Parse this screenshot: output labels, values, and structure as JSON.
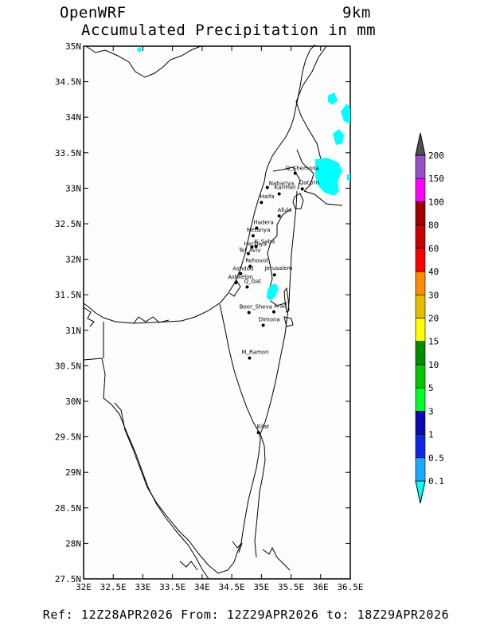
{
  "header": {
    "model": "OpenWRF",
    "resolution": "9km",
    "field": "Accumulated Precipitation in mm"
  },
  "footer": {
    "text": "Ref: 12Z28APR2026  From: 12Z29APR2026  to: 18Z29APR2026"
  },
  "map": {
    "lat_ticks": [
      "35N",
      "34.5N",
      "34N",
      "33.5N",
      "33N",
      "32.5N",
      "32N",
      "31.5N",
      "31N",
      "30.5N",
      "30N",
      "29.5N",
      "29N",
      "28.5N",
      "28N",
      "27.5N"
    ],
    "lon_ticks": [
      "32E",
      "32.5E",
      "33E",
      "33.5E",
      "34E",
      "34.5E",
      "35E",
      "35.5E",
      "36E",
      "36.5E"
    ],
    "lat_range": [
      27.5,
      35
    ],
    "lon_range": [
      32,
      36.5
    ],
    "cities": [
      {
        "name": "Q_Shemona",
        "lon": 35.57,
        "lat": 33.21
      },
      {
        "name": "Nahariya",
        "lon": 35.1,
        "lat": 33.01
      },
      {
        "name": "Karmiel",
        "lon": 35.3,
        "lat": 32.92
      },
      {
        "name": "Qatzrin",
        "lon": 35.69,
        "lat": 32.99
      },
      {
        "name": "Haifa",
        "lon": 35.0,
        "lat": 32.8
      },
      {
        "name": "Afula",
        "lon": 35.3,
        "lat": 32.61
      },
      {
        "name": "Hadera",
        "lon": 34.92,
        "lat": 32.44
      },
      {
        "name": "Netanya",
        "lon": 34.86,
        "lat": 32.33
      },
      {
        "name": "Herzliya",
        "lon": 34.84,
        "lat": 32.17
      },
      {
        "name": "K_Saba",
        "lon": 34.91,
        "lat": 32.18
      },
      {
        "name": "Tel_Aviv",
        "lon": 34.78,
        "lat": 32.08
      },
      {
        "name": "Rehovot",
        "lon": 34.81,
        "lat": 31.9
      },
      {
        "name": "Ashdod",
        "lon": 34.65,
        "lat": 31.8
      },
      {
        "name": "Jerusalem",
        "lon": 35.22,
        "lat": 31.78
      },
      {
        "name": "Ashkelon",
        "lon": 34.57,
        "lat": 31.67
      },
      {
        "name": "Q_Gat",
        "lon": 34.76,
        "lat": 31.61
      },
      {
        "name": "Beer_Sheva",
        "lon": 34.79,
        "lat": 31.25
      },
      {
        "name": "Arad",
        "lon": 35.21,
        "lat": 31.26
      },
      {
        "name": "Dimona",
        "lon": 35.03,
        "lat": 31.07
      },
      {
        "name": "M_Ramon",
        "lon": 34.8,
        "lat": 30.61
      },
      {
        "name": "Eilat",
        "lon": 34.95,
        "lat": 29.56
      }
    ]
  },
  "legend": {
    "levels": [
      "0.1",
      "0.5",
      "1",
      "3",
      "5",
      "10",
      "15",
      "20",
      "30",
      "40",
      "60",
      "80",
      "100",
      "150",
      "200"
    ],
    "colors": [
      "#00ffff",
      "#1ea8ff",
      "#0a28e6",
      "#0a0ab4",
      "#00ff28",
      "#00c800",
      "#008c00",
      "#ffff00",
      "#e6be00",
      "#ff8c00",
      "#ff0000",
      "#c80000",
      "#a00000",
      "#ff00ff",
      "#9650c8",
      "#505050"
    ]
  }
}
